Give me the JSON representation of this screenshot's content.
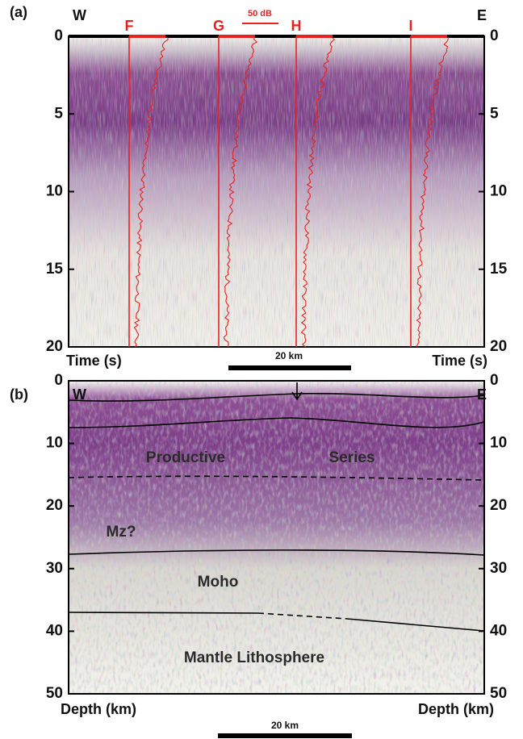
{
  "panel_a": {
    "label": "(a)",
    "west": "W",
    "east": "E",
    "yticks": [
      0,
      5,
      10,
      15,
      20
    ],
    "axis_label_left": "Time (s)",
    "axis_label_right": "Time (s)",
    "profiles": [
      "F",
      "G",
      "H",
      "I"
    ],
    "amplitude_scale": "50 dB",
    "scale_bar": "20 km"
  },
  "panel_b": {
    "label": "(b)",
    "west": "W",
    "east": "E",
    "yticks": [
      0,
      10,
      20,
      30,
      40,
      50
    ],
    "axis_label_left": "Depth (km)",
    "axis_label_right": "Depth (km)",
    "annotations": [
      "Productive",
      "Series",
      "Mz?",
      "Moho",
      "Mantle Lithosphere"
    ],
    "scale_bar": "20 km"
  }
}
